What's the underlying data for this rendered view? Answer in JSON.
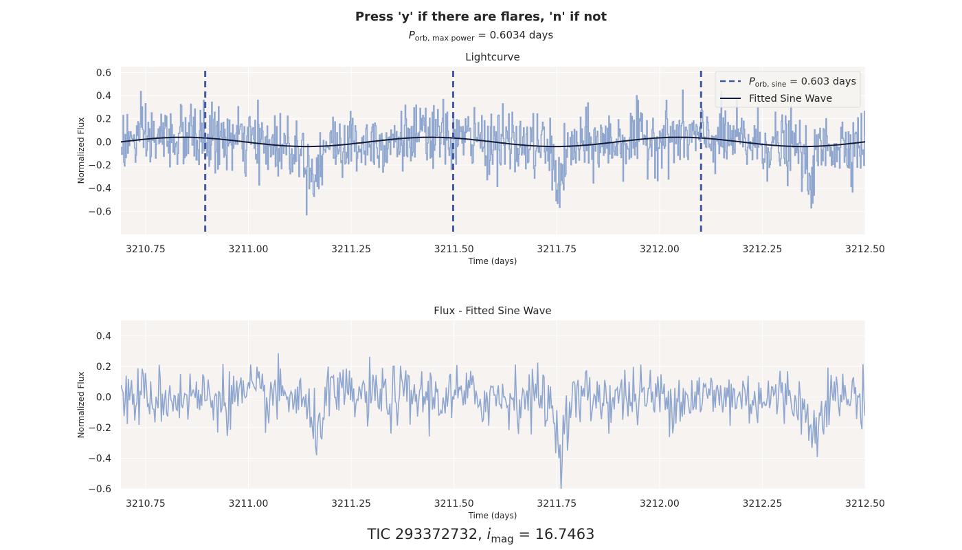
{
  "figure": {
    "title": "Press 'y' if there are flares, 'n' if not",
    "subtitle_var": "P",
    "subtitle_sub": "orb, max power",
    "subtitle_rest": " = 0.6034 days",
    "footer_prefix": "TIC 293372732, ",
    "footer_var": "i",
    "footer_sub": "mag",
    "footer_rest": " = 16.7463"
  },
  "colors": {
    "axes_bg": "#f6f3f1",
    "grid": "#ffffff",
    "flux": "#8fa6cf",
    "sine": "#141b3a",
    "period_line": "#4159a0",
    "text": "#262626"
  },
  "chart_data": [
    {
      "type": "line",
      "title": "Lightcurve",
      "xlabel": "Time (days)",
      "ylabel": "Normalized Flux",
      "xlim": [
        3210.69,
        3212.5
      ],
      "ylim": [
        -0.8,
        0.65
      ],
      "xticks": [
        3210.75,
        3211.0,
        3211.25,
        3211.5,
        3211.75,
        3212.0,
        3212.25,
        3212.5
      ],
      "xtick_labels": [
        "3210.75",
        "3211.00",
        "3211.25",
        "3211.50",
        "3211.75",
        "3212.00",
        "3212.25",
        "3212.50"
      ],
      "yticks": [
        0.6,
        0.4,
        0.2,
        0.0,
        -0.2,
        -0.4,
        -0.6
      ],
      "ytick_labels": [
        "0.6",
        "0.4",
        "0.2",
        "0.0",
        "−0.2",
        "−0.4",
        "−0.6"
      ],
      "grid": true,
      "legend_position": "top-right",
      "series": [
        {
          "name": "",
          "kind": "noisy_flux",
          "n_points": 1100,
          "noise_std": 0.14,
          "dips": [
            {
              "x": 3211.155,
              "depth": -0.25,
              "width": 0.018
            },
            {
              "x": 3211.755,
              "depth": -0.3,
              "width": 0.018
            },
            {
              "x": 3212.365,
              "depth": -0.25,
              "width": 0.018
            }
          ]
        },
        {
          "name": "Fitted Sine Wave",
          "kind": "sine",
          "amplitude": 0.04,
          "period_days": 0.603,
          "zero_crossing_x": 3210.69
        }
      ],
      "vlines": {
        "label_var": "P",
        "label_sub": "orb, sine",
        "label_rest": " = 0.603 days",
        "x": [
          3210.895,
          3211.498,
          3212.101
        ]
      }
    },
    {
      "type": "line",
      "title": "Flux - Fitted Sine Wave",
      "xlabel": "Time (days)",
      "ylabel": "Normalized Flux",
      "xlim": [
        3210.69,
        3212.5
      ],
      "ylim": [
        -0.6,
        0.5
      ],
      "xticks": [
        3210.75,
        3211.0,
        3211.25,
        3211.5,
        3211.75,
        3212.0,
        3212.25,
        3212.5
      ],
      "xtick_labels": [
        "3210.75",
        "3211.00",
        "3211.25",
        "3211.50",
        "3211.75",
        "3212.00",
        "3212.25",
        "3212.50"
      ],
      "yticks": [
        0.4,
        0.2,
        0.0,
        -0.2,
        -0.4,
        -0.6
      ],
      "ytick_labels": [
        "0.4",
        "0.2",
        "0.0",
        "−0.2",
        "−0.4",
        "−0.6"
      ],
      "grid": true,
      "series": [
        {
          "name": "",
          "kind": "noisy_flux",
          "n_points": 700,
          "noise_std": 0.1,
          "dips": [
            {
              "x": 3211.16,
              "depth": -0.22,
              "width": 0.02
            },
            {
              "x": 3211.76,
              "depth": -0.28,
              "width": 0.02
            },
            {
              "x": 3212.37,
              "depth": -0.22,
              "width": 0.02
            }
          ]
        }
      ]
    }
  ]
}
